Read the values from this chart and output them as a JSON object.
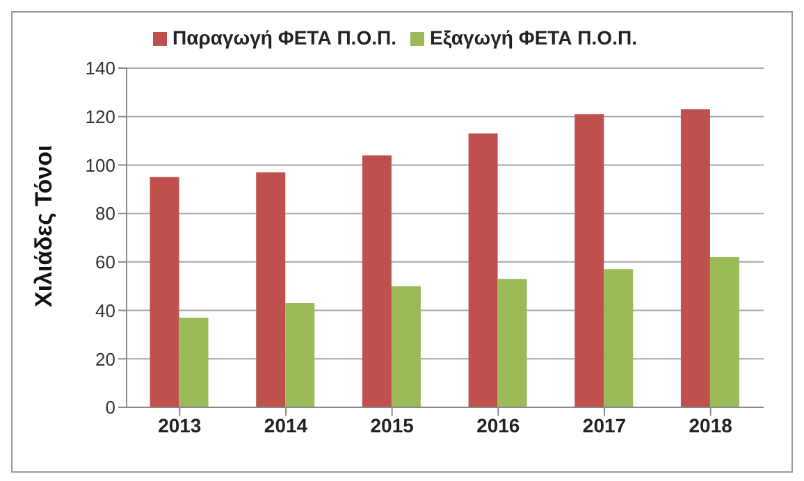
{
  "chart_data": {
    "type": "bar",
    "ylabel": "Χιλιάδες Τόνοι",
    "categories": [
      "2013",
      "2014",
      "2015",
      "2016",
      "2017",
      "2018"
    ],
    "series": [
      {
        "name": "Παραγωγή ΦΕΤΑ Π.Ο.Π.",
        "color": "#c0504d",
        "values": [
          95,
          97,
          104,
          113,
          121,
          123
        ]
      },
      {
        "name": "Εξαγωγή ΦΕΤΑ Π.Ο.Π.",
        "color": "#9bbb59",
        "values": [
          37,
          43,
          50,
          53,
          57,
          62
        ]
      }
    ],
    "ylim": [
      0,
      140
    ],
    "yticks": [
      0,
      20,
      40,
      60,
      80,
      100,
      120,
      140
    ],
    "grid": "y",
    "legend": "top"
  }
}
